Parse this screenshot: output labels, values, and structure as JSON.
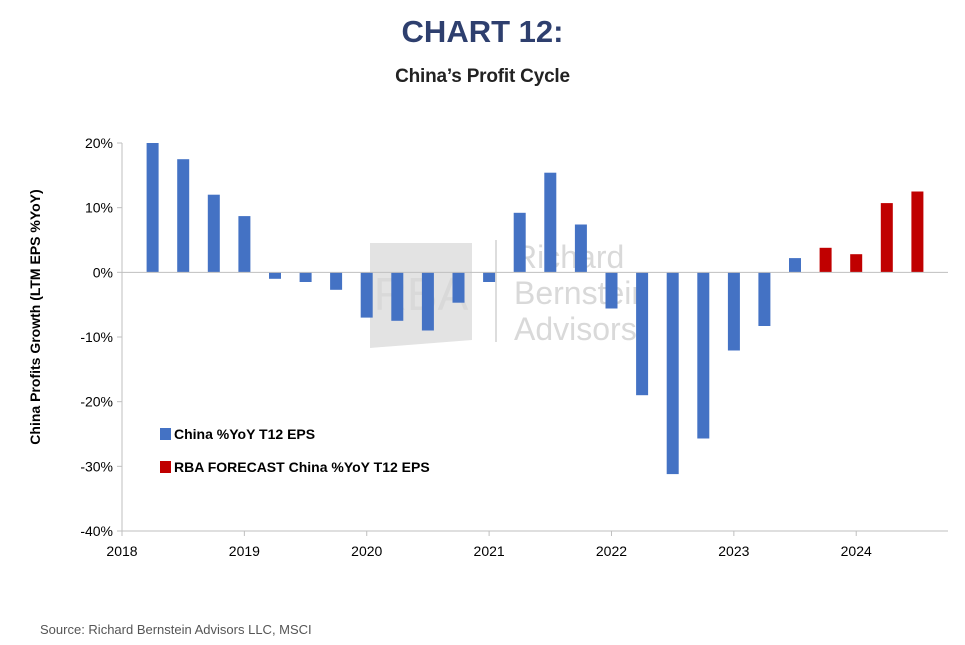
{
  "header": {
    "title": "CHART 12:",
    "subtitle": "China’s Profit Cycle"
  },
  "footer": {
    "source": "Source: Richard Bernstein Advisors LLC, MSCI"
  },
  "watermark": {
    "logo_text": "RBA",
    "lines": [
      "Richard",
      "Bernstein",
      "Advisors"
    ]
  },
  "colors": {
    "actual": "#4472c4",
    "forecast": "#c00000",
    "title": "#2e3f6e"
  },
  "chart_data": {
    "type": "bar",
    "ylabel": "China Profits Growth  (LTM EPS %YoY)",
    "xlabel": "",
    "ylim": [
      -40,
      20
    ],
    "yticks": [
      20,
      10,
      0,
      -10,
      -20,
      -30,
      -40
    ],
    "ytick_labels": [
      "20%",
      "10%",
      "0%",
      "-10%",
      "-20%",
      "-30%",
      "-40%"
    ],
    "xlim": [
      2018.0,
      2024.75
    ],
    "xticks": [
      2018,
      2019,
      2020,
      2021,
      2022,
      2023,
      2024
    ],
    "xtick_labels": [
      "2018",
      "2019",
      "2020",
      "2021",
      "2022",
      "2023",
      "2024"
    ],
    "legend_position": "lower-left",
    "series": [
      {
        "name": "China %YoY T12 EPS",
        "color": "#4472c4",
        "x": [
          2018.25,
          2018.5,
          2018.75,
          2019.0,
          2019.25,
          2019.5,
          2019.75,
          2020.0,
          2020.25,
          2020.5,
          2020.75,
          2021.0,
          2021.25,
          2021.5,
          2021.75,
          2022.0,
          2022.25,
          2022.5,
          2022.75,
          2023.0,
          2023.25,
          2023.5
        ],
        "values": [
          20.0,
          17.5,
          12.0,
          8.7,
          -1.0,
          -1.5,
          -2.7,
          -7.0,
          -7.5,
          -9.0,
          -4.7,
          -1.5,
          9.2,
          15.4,
          7.4,
          -5.6,
          -19.0,
          -31.2,
          -25.7,
          -12.1,
          -8.3,
          2.2
        ]
      },
      {
        "name": "RBA FORECAST China %YoY T12 EPS",
        "color": "#c00000",
        "x": [
          2023.75,
          2024.0,
          2024.25,
          2024.5
        ],
        "values": [
          3.8,
          2.8,
          10.7,
          12.5
        ]
      }
    ]
  }
}
